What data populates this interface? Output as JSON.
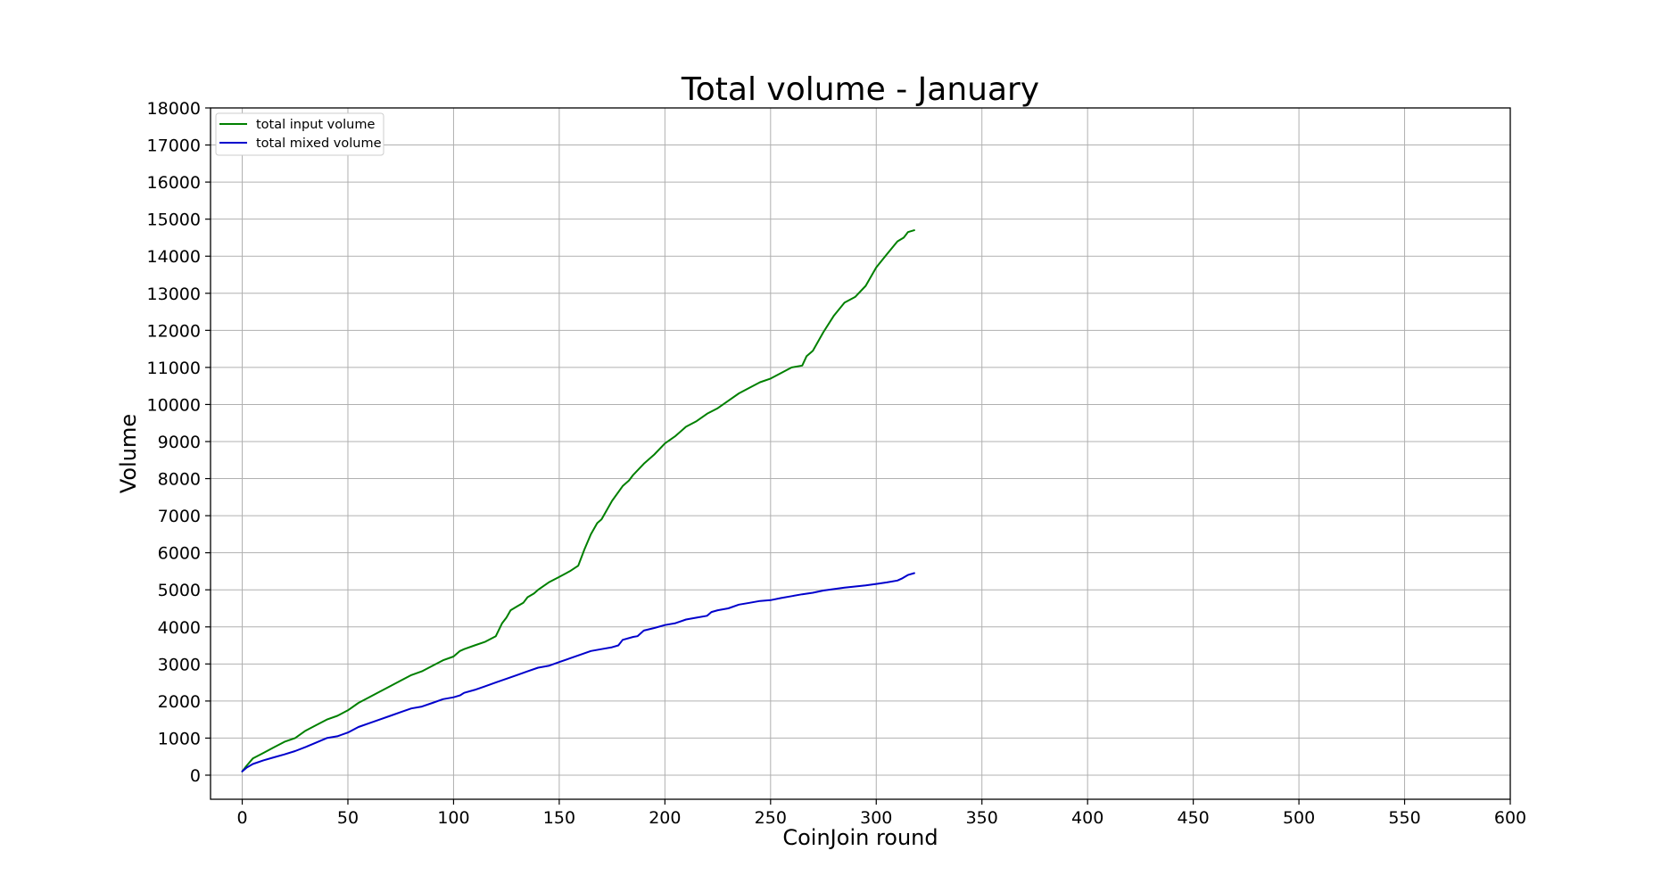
{
  "chart_data": {
    "type": "line",
    "title": "Total volume - January",
    "xlabel": "CoinJoin round",
    "ylabel": "Volume",
    "xlim": [
      -15,
      600
    ],
    "ylim": [
      -650,
      18000
    ],
    "xticks": [
      0,
      50,
      100,
      150,
      200,
      250,
      300,
      350,
      400,
      450,
      500,
      550,
      600
    ],
    "yticks": [
      0,
      1000,
      2000,
      3000,
      4000,
      5000,
      6000,
      7000,
      8000,
      9000,
      10000,
      11000,
      12000,
      13000,
      14000,
      15000,
      16000,
      17000,
      18000
    ],
    "grid": true,
    "legend_position": "top-left",
    "series": [
      {
        "name": "total input volume",
        "color": "#008000",
        "x": [
          0,
          2,
          5,
          10,
          15,
          20,
          25,
          30,
          35,
          40,
          45,
          50,
          55,
          60,
          65,
          70,
          75,
          80,
          85,
          90,
          95,
          100,
          103,
          105,
          110,
          115,
          120,
          123,
          125,
          127,
          130,
          133,
          135,
          138,
          140,
          145,
          150,
          155,
          159,
          162,
          165,
          168,
          170,
          175,
          180,
          183,
          185,
          190,
          195,
          200,
          205,
          210,
          215,
          220,
          225,
          230,
          235,
          240,
          245,
          250,
          255,
          260,
          265,
          267,
          270,
          275,
          280,
          285,
          290,
          295,
          300,
          305,
          310,
          313,
          315,
          318
        ],
        "y": [
          100,
          250,
          450,
          600,
          750,
          900,
          1000,
          1200,
          1350,
          1500,
          1600,
          1750,
          1950,
          2100,
          2250,
          2400,
          2550,
          2700,
          2800,
          2950,
          3100,
          3200,
          3350,
          3400,
          3500,
          3600,
          3750,
          4100,
          4250,
          4450,
          4550,
          4650,
          4800,
          4900,
          5000,
          5200,
          5350,
          5500,
          5650,
          6100,
          6500,
          6800,
          6900,
          7400,
          7800,
          7950,
          8100,
          8400,
          8650,
          8950,
          9150,
          9400,
          9550,
          9750,
          9900,
          10100,
          10300,
          10450,
          10600,
          10700,
          10850,
          11000,
          11050,
          11300,
          11450,
          11950,
          12400,
          12750,
          12900,
          13200,
          13700,
          14050,
          14400,
          14500,
          14650,
          14700
        ]
      },
      {
        "name": "total mixed volume",
        "color": "#0000cc",
        "x": [
          0,
          2,
          5,
          10,
          15,
          20,
          25,
          30,
          35,
          40,
          45,
          50,
          55,
          60,
          65,
          70,
          75,
          80,
          85,
          90,
          95,
          100,
          103,
          105,
          110,
          115,
          120,
          125,
          130,
          135,
          140,
          145,
          150,
          155,
          160,
          165,
          170,
          175,
          178,
          180,
          185,
          187,
          190,
          195,
          200,
          205,
          210,
          215,
          220,
          222,
          225,
          230,
          235,
          240,
          245,
          250,
          255,
          260,
          265,
          270,
          275,
          280,
          285,
          290,
          295,
          300,
          305,
          310,
          312,
          315,
          318
        ],
        "y": [
          100,
          200,
          300,
          400,
          480,
          560,
          650,
          760,
          880,
          1000,
          1050,
          1150,
          1300,
          1400,
          1500,
          1600,
          1700,
          1800,
          1850,
          1950,
          2050,
          2100,
          2150,
          2220,
          2300,
          2400,
          2500,
          2600,
          2700,
          2800,
          2900,
          2950,
          3050,
          3150,
          3250,
          3350,
          3400,
          3450,
          3500,
          3650,
          3730,
          3750,
          3900,
          3970,
          4050,
          4100,
          4200,
          4250,
          4300,
          4400,
          4450,
          4500,
          4600,
          4650,
          4700,
          4720,
          4780,
          4830,
          4880,
          4920,
          4980,
          5020,
          5060,
          5090,
          5120,
          5160,
          5200,
          5250,
          5300,
          5400,
          5450
        ]
      }
    ]
  }
}
